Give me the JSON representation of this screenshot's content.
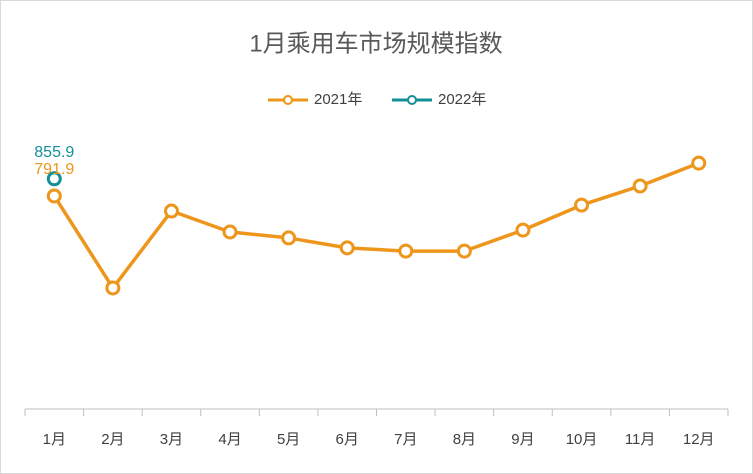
{
  "chart_data": {
    "type": "line",
    "title": "1月乘用车市场规模指数",
    "categories": [
      "1月",
      "2月",
      "3月",
      "4月",
      "5月",
      "6月",
      "7月",
      "8月",
      "9月",
      "10月",
      "11月",
      "12月"
    ],
    "series": [
      {
        "name": "2021年",
        "color": "#EE961B",
        "values": [
          791.9,
          450,
          736,
          658,
          636,
          599,
          587,
          587,
          665,
          758,
          829,
          914
        ],
        "value_labels": [
          "791.9",
          null,
          null,
          null,
          null,
          null,
          null,
          null,
          null,
          null,
          null,
          null
        ]
      },
      {
        "name": "2022年",
        "color": "#138F97",
        "values": [
          855.9,
          null,
          null,
          null,
          null,
          null,
          null,
          null,
          null,
          null,
          null,
          null
        ],
        "value_labels": [
          "855.9",
          null,
          null,
          null,
          null,
          null,
          null,
          null,
          null,
          null,
          null,
          null
        ]
      }
    ],
    "ylim": [
      0,
      1000
    ],
    "legend": "top"
  }
}
